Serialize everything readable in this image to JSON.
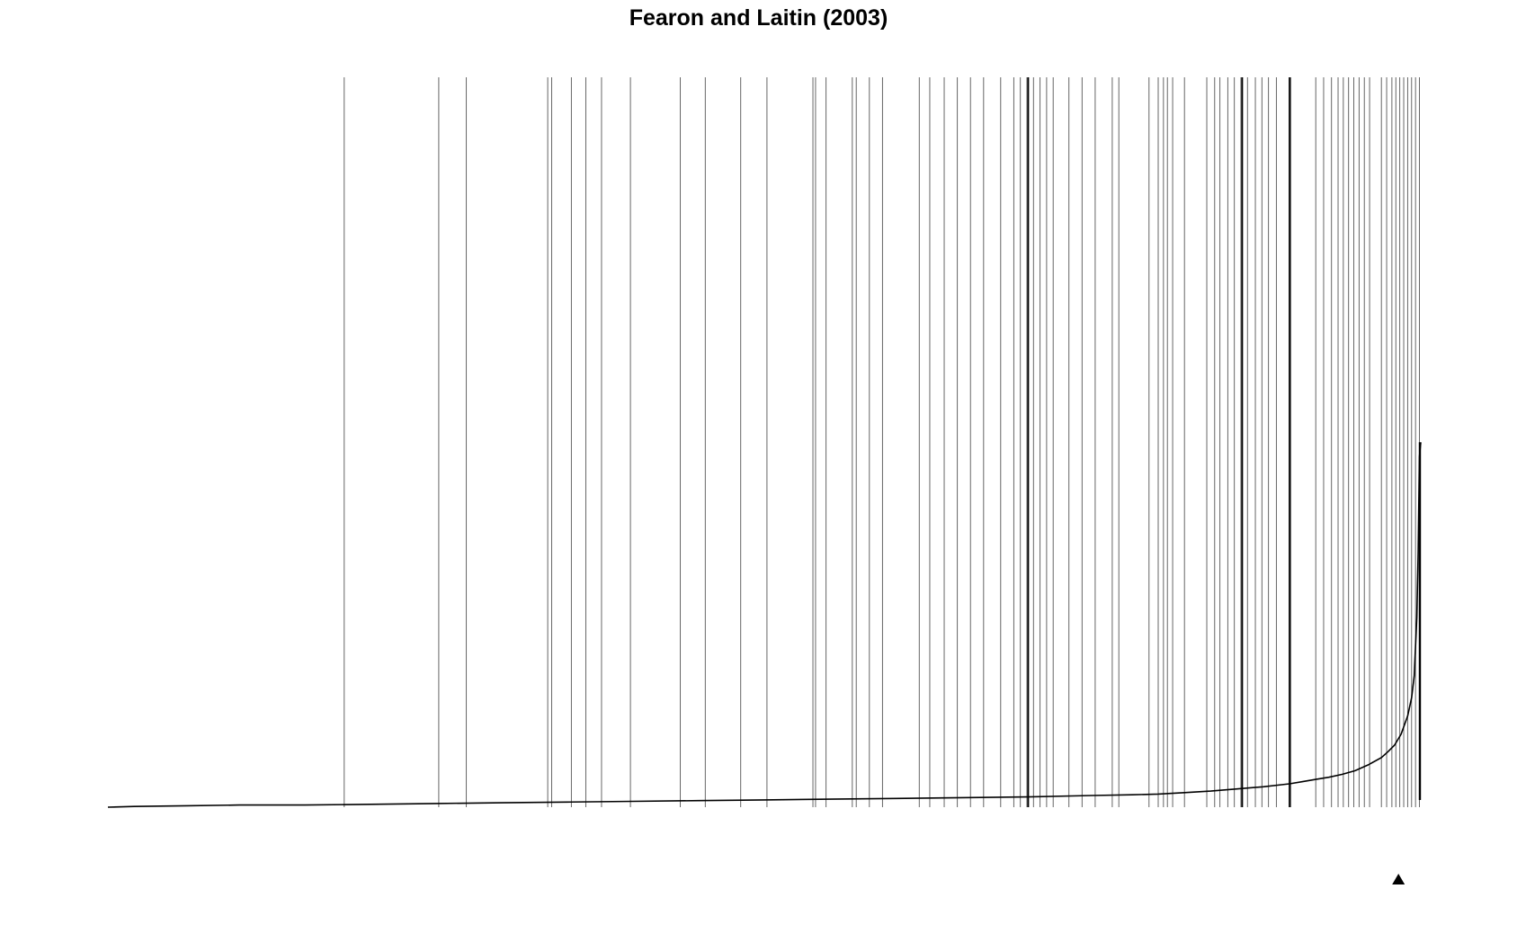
{
  "colors": {
    "background": "#ffffff",
    "ink": "#000000",
    "event_line": "#555555"
  },
  "chart_data": {
    "type": "line",
    "title": "Fearon and Laitin (2003)",
    "xlabel": "",
    "ylabel": "",
    "axes_drawn": false,
    "grid": false,
    "legend": "none",
    "xlim": [
      0,
      1
    ],
    "ylim": [
      0,
      1
    ],
    "sorted_curve": {
      "x": [
        0.0,
        0.02,
        0.06,
        0.1,
        0.15,
        0.2,
        0.25,
        0.3,
        0.35,
        0.4,
        0.45,
        0.5,
        0.55,
        0.6,
        0.65,
        0.7,
        0.75,
        0.78,
        0.8,
        0.82,
        0.84,
        0.86,
        0.88,
        0.9,
        0.91,
        0.92,
        0.93,
        0.94,
        0.95,
        0.96,
        0.97,
        0.975,
        0.98,
        0.985,
        0.99,
        0.993,
        0.995,
        0.997,
        0.998,
        0.999,
        1.0
      ],
      "y": [
        0.0,
        0.001,
        0.002,
        0.003,
        0.003,
        0.004,
        0.005,
        0.006,
        0.007,
        0.008,
        0.009,
        0.01,
        0.011,
        0.012,
        0.013,
        0.014,
        0.016,
        0.017,
        0.018,
        0.02,
        0.022,
        0.025,
        0.028,
        0.032,
        0.035,
        0.038,
        0.041,
        0.045,
        0.05,
        0.058,
        0.068,
        0.076,
        0.085,
        0.1,
        0.125,
        0.15,
        0.18,
        0.26,
        0.35,
        0.48,
        0.5
      ]
    },
    "event_markers": {
      "positions": [
        0.18,
        0.252,
        0.273,
        0.335,
        0.338,
        0.353,
        0.364,
        0.376,
        0.398,
        0.436,
        0.455,
        0.482,
        0.502,
        0.537,
        0.539,
        0.547,
        0.567,
        0.57,
        0.58,
        0.59,
        0.618,
        0.626,
        0.637,
        0.647,
        0.657,
        0.667,
        0.68,
        0.69,
        0.695,
        0.7,
        0.705,
        0.71,
        0.715,
        0.72,
        0.732,
        0.742,
        0.752,
        0.765,
        0.77,
        0.793,
        0.8,
        0.804,
        0.807,
        0.811,
        0.82,
        0.837,
        0.843,
        0.847,
        0.853,
        0.858,
        0.863,
        0.868,
        0.874,
        0.879,
        0.884,
        0.89,
        0.9,
        0.901,
        0.92,
        0.926,
        0.932,
        0.937,
        0.941,
        0.945,
        0.949,
        0.953,
        0.957,
        0.961,
        0.97,
        0.974,
        0.978,
        0.981,
        0.984,
        0.987,
        0.99,
        0.993,
        0.996,
        0.999
      ],
      "heavy_positions": [
        0.701,
        0.864,
        0.9
      ]
    },
    "annotation_marker": {
      "shape": "triangle-up",
      "x": 0.983
    }
  }
}
